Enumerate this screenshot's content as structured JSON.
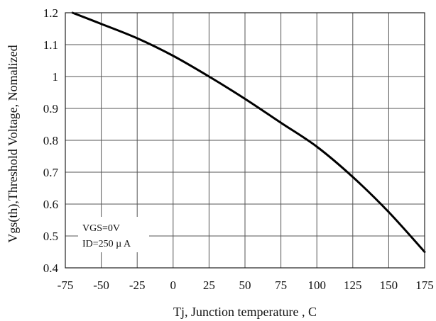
{
  "chart_data": {
    "type": "line",
    "title": "",
    "xlabel": "Tj, Junction temperature , C",
    "ylabel": "Vgs(th),Threshold Voltage, Nomalized",
    "xlim": [
      -75,
      175
    ],
    "ylim": [
      0.4,
      1.2
    ],
    "x_ticks": [
      -75,
      -50,
      -25,
      0,
      25,
      50,
      75,
      100,
      125,
      150,
      175
    ],
    "x_tick_labels": [
      "-75",
      "-50",
      "-25",
      "0",
      "25",
      "50",
      "75",
      "100",
      "125",
      "150",
      "175"
    ],
    "y_ticks": [
      0.4,
      0.5,
      0.6,
      0.7,
      0.8,
      0.9,
      1.0,
      1.1,
      1.2
    ],
    "y_tick_labels": [
      "0.4",
      "0.5",
      "0.6",
      "0.7",
      "0.8",
      "0.9",
      "1",
      "1.1",
      "1.2"
    ],
    "grid": true,
    "annotations": [
      "VGS=0V",
      "ID=250 µ A"
    ],
    "series": [
      {
        "color": "#000000",
        "x": [
          -70,
          -50,
          -25,
          0,
          25,
          50,
          75,
          100,
          125,
          150,
          175
        ],
        "y": [
          1.2,
          1.165,
          1.12,
          1.065,
          1.0,
          0.93,
          0.855,
          0.78,
          0.685,
          0.575,
          0.45
        ]
      }
    ]
  }
}
